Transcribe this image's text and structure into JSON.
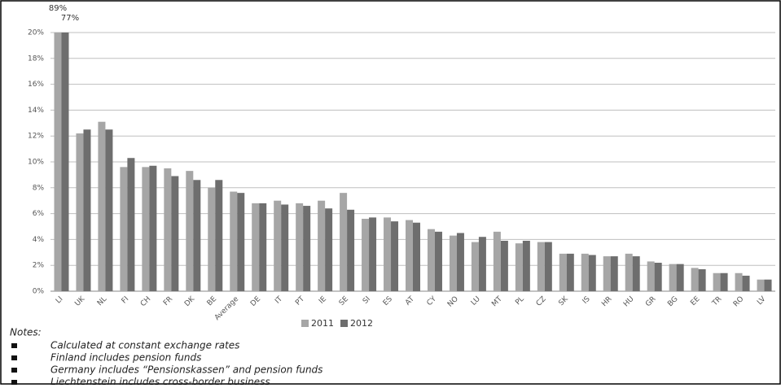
{
  "chart_data": {
    "type": "bar",
    "categories": [
      "LI",
      "UK",
      "NL",
      "FI",
      "CH",
      "FR",
      "DK",
      "BE",
      "Average",
      "DE",
      "IT",
      "PT",
      "IE",
      "SE",
      "SI",
      "ES",
      "AT",
      "CY",
      "NO",
      "LU",
      "MT",
      "PL",
      "CZ",
      "SK",
      "IS",
      "HR",
      "HU",
      "GR",
      "BG",
      "EE",
      "TR",
      "RO",
      "LV"
    ],
    "series": [
      {
        "name": "2011",
        "color": "#a6a6a6",
        "values": [
          89,
          12.2,
          13.1,
          9.6,
          9.6,
          9.5,
          9.3,
          8.0,
          7.7,
          6.8,
          7.0,
          6.8,
          7.0,
          7.6,
          5.6,
          5.7,
          5.5,
          4.8,
          4.3,
          3.8,
          4.6,
          3.7,
          3.8,
          2.9,
          2.9,
          2.7,
          2.9,
          2.3,
          2.1,
          1.8,
          1.4,
          1.4,
          0.9
        ],
        "value_labels": [
          "89%",
          null,
          null,
          null,
          null,
          null,
          null,
          null,
          null,
          null,
          null,
          null,
          null,
          null,
          null,
          null,
          null,
          null,
          null,
          null,
          null,
          null,
          null,
          null,
          null,
          null,
          null,
          null,
          null,
          null,
          null,
          null,
          null
        ]
      },
      {
        "name": "2012",
        "color": "#6e6e6e",
        "values": [
          77,
          12.5,
          12.5,
          10.3,
          9.7,
          8.9,
          8.6,
          8.6,
          7.6,
          6.8,
          6.7,
          6.6,
          6.4,
          6.3,
          5.7,
          5.4,
          5.3,
          4.6,
          4.5,
          4.2,
          3.9,
          3.9,
          3.8,
          2.9,
          2.8,
          2.7,
          2.7,
          2.2,
          2.1,
          1.7,
          1.4,
          1.2,
          0.9
        ],
        "value_labels": [
          "77%",
          null,
          null,
          null,
          null,
          null,
          null,
          null,
          null,
          null,
          null,
          null,
          null,
          null,
          null,
          null,
          null,
          null,
          null,
          null,
          null,
          null,
          null,
          null,
          null,
          null,
          null,
          null,
          null,
          null,
          null,
          null,
          null
        ]
      }
    ],
    "ylim": [
      0,
      20
    ],
    "yticks": [
      {
        "value": 0,
        "label": "0%"
      },
      {
        "value": 2,
        "label": "2%"
      },
      {
        "value": 4,
        "label": "4%"
      },
      {
        "value": 6,
        "label": "6%"
      },
      {
        "value": 8,
        "label": "8%"
      },
      {
        "value": 10,
        "label": "10%"
      },
      {
        "value": 12,
        "label": "12%"
      },
      {
        "value": 14,
        "label": "14%"
      },
      {
        "value": 16,
        "label": "16%"
      },
      {
        "value": 18,
        "label": "18%"
      },
      {
        "value": 20,
        "label": "20%"
      }
    ],
    "grid": true,
    "legend": "bottom"
  },
  "notes": {
    "title": "Notes:",
    "items": [
      "Calculated at constant exchange rates",
      "Finland includes pension funds",
      "Germany includes “Pensionskassen” and pension funds",
      "Liechtenstein includes cross-border business"
    ]
  }
}
